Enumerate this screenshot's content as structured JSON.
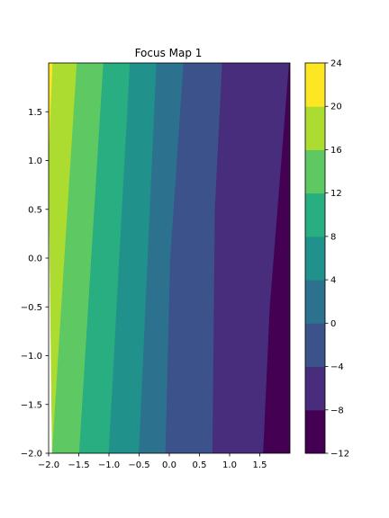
{
  "chart_data": {
    "type": "contour",
    "title": "Focus Map 1",
    "xlabel": "",
    "ylabel": "",
    "xlim": [
      -2.0,
      2.0
    ],
    "ylim": [
      -2.0,
      2.0
    ],
    "x_ticks": [
      -2.0,
      -1.5,
      -1.0,
      -0.5,
      0.0,
      0.5,
      1.0,
      1.5
    ],
    "y_ticks": [
      -2.0,
      -1.5,
      -1.0,
      -0.5,
      0.0,
      0.5,
      1.0,
      1.5
    ],
    "x_tick_labels": [
      "−2.0",
      "−1.5",
      "−1.0",
      "−0.5",
      "0.0",
      "0.5",
      "1.0",
      "1.5"
    ],
    "y_tick_labels": [
      "−2.0",
      "−1.5",
      "−1.0",
      "−0.5",
      "0.0",
      "0.5",
      "1.0",
      "1.5"
    ],
    "levels": [
      -12,
      -8,
      -4,
      0,
      4,
      8,
      12,
      16,
      20,
      24
    ],
    "colorbar_tick_labels": [
      "−12",
      "−8",
      "−4",
      "0",
      "4",
      "8",
      "12",
      "16",
      "20",
      "24"
    ],
    "colormap": [
      "#440154",
      "#472d7b",
      "#3b528b",
      "#2c728e",
      "#21918c",
      "#28ae80",
      "#5ec962",
      "#addc30",
      "#fde725"
    ],
    "contour_boundaries": [
      {
        "level": 20,
        "points": [
          [
            -1.93,
            2.0
          ],
          [
            -2.0,
            1.0
          ]
        ]
      },
      {
        "level": 16,
        "points": [
          [
            -1.53,
            2.0
          ],
          [
            -1.94,
            -2.0
          ]
        ]
      },
      {
        "level": 12,
        "points": [
          [
            -1.09,
            2.0
          ],
          [
            -1.49,
            -2.0
          ]
        ]
      },
      {
        "level": 8,
        "points": [
          [
            -0.65,
            2.0
          ],
          [
            -1.0,
            -2.0
          ]
        ]
      },
      {
        "level": 4,
        "points": [
          [
            -0.21,
            2.0
          ],
          [
            -0.5,
            -2.0
          ]
        ]
      },
      {
        "level": 0,
        "points": [
          [
            0.24,
            2.0
          ],
          [
            0.02,
            0.0
          ],
          [
            -0.06,
            -2.0
          ]
        ]
      },
      {
        "level": -4,
        "points": [
          [
            0.88,
            2.0
          ],
          [
            0.76,
            0.5
          ],
          [
            0.72,
            -2.0
          ]
        ]
      },
      {
        "level": -8,
        "points": [
          [
            1.99,
            2.0
          ],
          [
            1.67,
            -0.5
          ],
          [
            1.56,
            -2.0
          ]
        ]
      }
    ],
    "grid": false,
    "colorbar": "right"
  }
}
